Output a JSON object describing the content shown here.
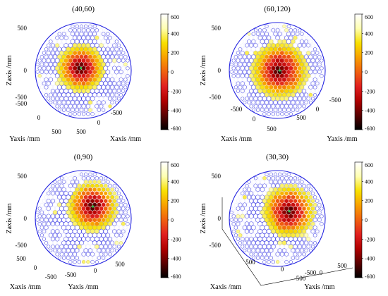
{
  "colors": {
    "sphere_edge": "#2020e0",
    "background": "#ffffff"
  },
  "colormap": [
    "#000000",
    "#5a0000",
    "#b00000",
    "#e02020",
    "#f06010",
    "#f8a000",
    "#f8e000",
    "#ffffb0",
    "#ffffff"
  ],
  "chart_data": [
    {
      "type": "scatter",
      "title": "(40,60)",
      "xlabel": "Xaxis /mm",
      "ylabel": "Yaxis /mm",
      "zlabel": "Zaxis /mm",
      "z_ticks": [
        "500",
        "0",
        "-500"
      ],
      "x_ticks": [
        "500",
        "0",
        "-500"
      ],
      "y_ticks": [
        "-500",
        "0",
        "500"
      ],
      "colorbar": {
        "min": -600,
        "max": 600,
        "ticks": [
          "600",
          "400",
          "200",
          "0",
          "-200",
          "-400",
          "-600"
        ]
      },
      "hotspot": {
        "u": -0.05,
        "v": -0.05,
        "r": 0.38
      },
      "hex_patches": [
        {
          "u": -0.75,
          "v": 0.25
        },
        {
          "u": 0.72,
          "v": 0.0
        },
        {
          "u": 0.5,
          "v": -0.7
        },
        {
          "u": -0.45,
          "v": -0.72
        },
        {
          "u": 0.35,
          "v": 0.75
        }
      ]
    },
    {
      "type": "scatter",
      "title": "(60,120)",
      "xlabel": "Xaxis /mm",
      "ylabel": "Yaxis /mm",
      "zlabel": "Zaxis /mm",
      "z_ticks": [
        "500",
        "0",
        "-500"
      ],
      "x_ticks": [
        "-500",
        "0",
        "500"
      ],
      "y_ticks": [
        "500",
        "0",
        "-500"
      ],
      "colorbar": {
        "min": -600,
        "max": 600,
        "ticks": [
          "600",
          "400",
          "200",
          "0",
          "-200",
          "-400",
          "-600"
        ]
      },
      "hotspot": {
        "u": 0.05,
        "v": 0.0,
        "r": 0.45
      },
      "hex_patches": [
        {
          "u": -0.78,
          "v": 0.35
        },
        {
          "u": 0.78,
          "v": 0.3
        },
        {
          "u": 0.0,
          "v": -0.78
        },
        {
          "u": -0.55,
          "v": -0.55
        },
        {
          "u": 0.55,
          "v": -0.55
        }
      ]
    },
    {
      "type": "scatter",
      "title": "(0,90)",
      "xlabel": "Xaxis /mm",
      "ylabel": "Yaxis /mm",
      "zlabel": "Zaxis /mm",
      "z_ticks": [
        "500",
        "0",
        "-500"
      ],
      "x_ticks": [
        "500",
        "0",
        "-500"
      ],
      "y_ticks": [
        "-500",
        "0",
        "500"
      ],
      "colorbar": {
        "min": -600,
        "max": 600,
        "ticks": [
          "600",
          "400",
          "200",
          "0",
          "-200",
          "-400",
          "-600"
        ]
      },
      "hotspot": {
        "u": 0.2,
        "v": -0.25,
        "r": 0.4
      },
      "hex_patches": [
        {
          "u": -0.6,
          "v": 0.35
        },
        {
          "u": -0.7,
          "v": -0.3
        },
        {
          "u": 0.1,
          "v": 0.7
        },
        {
          "u": -0.2,
          "v": -0.75
        },
        {
          "u": 0.75,
          "v": 0.3
        }
      ]
    },
    {
      "type": "scatter",
      "title": "(30,30)",
      "xlabel": "Xaxis /mm",
      "ylabel": "Yaxis /mm",
      "zlabel": "Zaxis /mm",
      "z_ticks": [
        "500",
        "0",
        "-500"
      ],
      "x_ticks": [
        "500",
        "0",
        "-500"
      ],
      "y_ticks": [
        "-500",
        "0",
        "500"
      ],
      "colorbar": {
        "min": -600,
        "max": 600,
        "ticks": [
          "600",
          "400",
          "200",
          "0",
          "-200",
          "-400",
          "-600"
        ]
      },
      "hotspot": {
        "u": 0.25,
        "v": -0.15,
        "r": 0.42
      },
      "hex_patches": [
        {
          "u": -0.6,
          "v": 0.2
        },
        {
          "u": -0.35,
          "v": -0.65
        },
        {
          "u": 0.1,
          "v": 0.72
        },
        {
          "u": 0.78,
          "v": 0.25
        },
        {
          "u": -0.75,
          "v": -0.25
        }
      ]
    }
  ]
}
